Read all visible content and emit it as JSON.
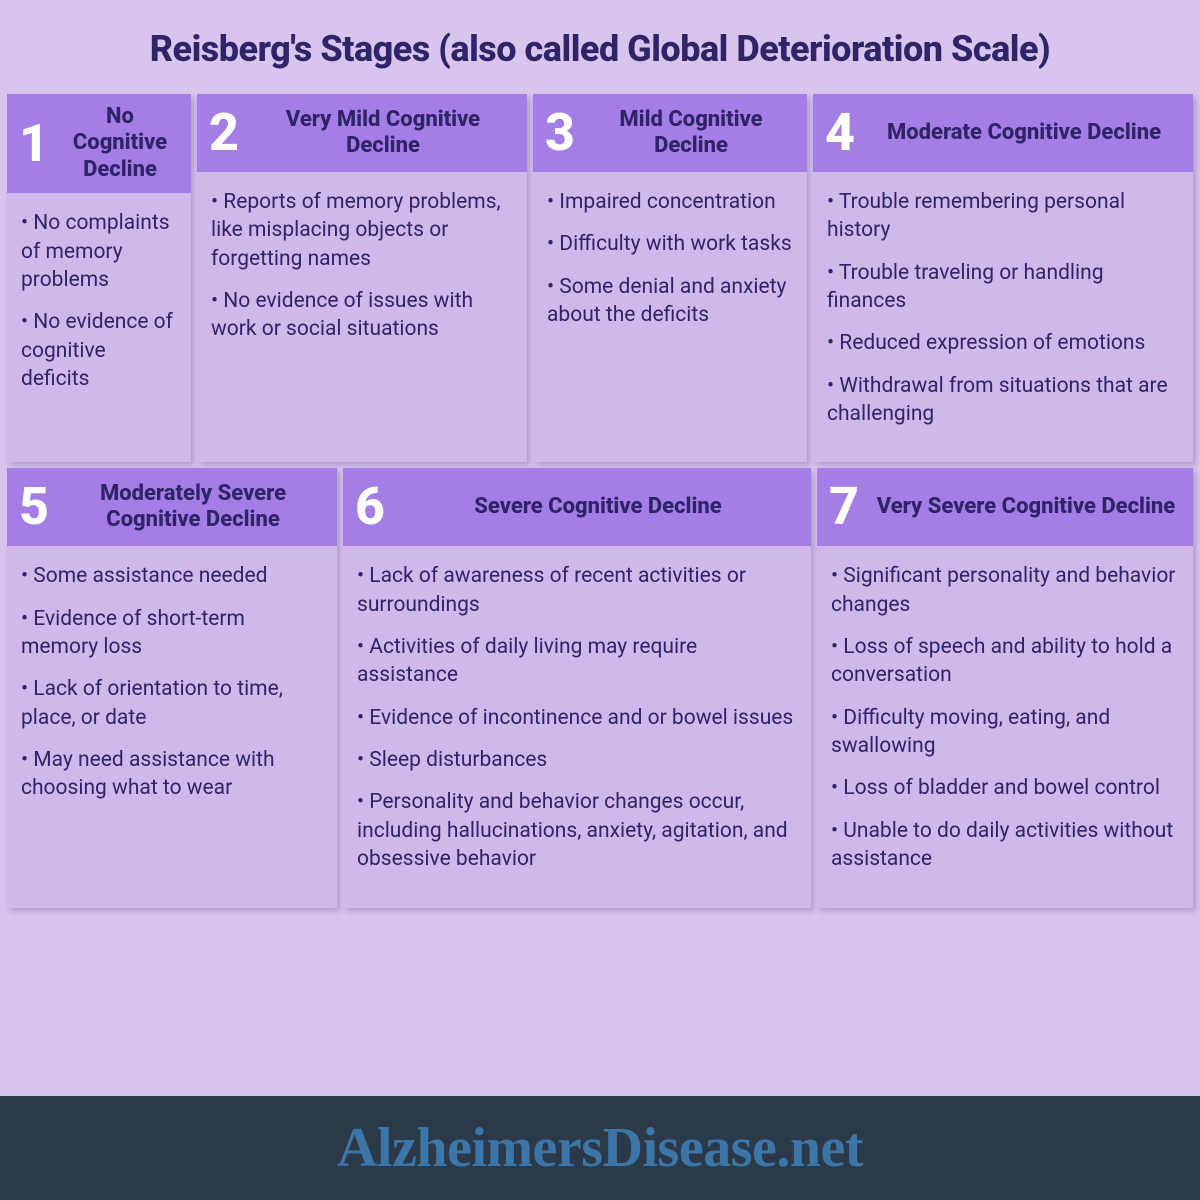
{
  "title": "Reisberg's Stages (also called Global Deterioration Scale)",
  "colors": {
    "page_bg": "#d7c5ed",
    "card_bg": "#cfb9eb",
    "head_bg": "#a47ee6",
    "num_color": "#ffffff",
    "text_color": "#302468",
    "footer_bg": "#2b3948",
    "footer_text": "#3c76a8"
  },
  "stages": [
    {
      "num": "1",
      "label": "No Cognitive Decline",
      "bullets": [
        "No complaints of memory problems",
        "No evidence of cognitive deficits"
      ]
    },
    {
      "num": "2",
      "label": "Very Mild Cognitive Decline",
      "bullets": [
        "Reports of memory problems, like misplacing objects or forgetting names",
        "No evidence of issues with work or social situations"
      ]
    },
    {
      "num": "3",
      "label": "Mild Cognitive Decline",
      "bullets": [
        "Impaired concentration",
        "Difficulty with work tasks",
        "Some denial and anxiety about the deficits"
      ]
    },
    {
      "num": "4",
      "label": "Moderate Cognitive Decline",
      "bullets": [
        "Trouble remembering personal history",
        "Trouble traveling or handling finances",
        "Reduced expression of emotions",
        "Withdrawal from situations that are challenging"
      ]
    },
    {
      "num": "5",
      "label": "Moderately Severe Cognitive Decline",
      "bullets": [
        "Some assistance needed",
        "Evidence of short-term memory loss",
        "Lack of orientation to time, place, or date",
        "May need assistance with choosing what to wear"
      ]
    },
    {
      "num": "6",
      "label": "Severe Cognitive Decline",
      "bullets": [
        "Lack of awareness of recent activities or surroundings",
        "Activities of daily living may require assistance",
        "Evidence of incontinence and or bowel issues",
        "Sleep disturbances",
        "Personality and behavior changes occur, including hallucinations, anxiety, agitation, and obsessive behavior"
      ]
    },
    {
      "num": "7",
      "label": "Very Severe Cognitive Decline",
      "bullets": [
        "Significant personality and behavior changes",
        "Loss of speech and ability to hold a conversation",
        "Difficulty moving, eating, and swallowing",
        "Loss of bladder and bowel control",
        "Unable to do daily activities without assistance"
      ]
    }
  ],
  "footer": "AlzheimersDisease.net"
}
